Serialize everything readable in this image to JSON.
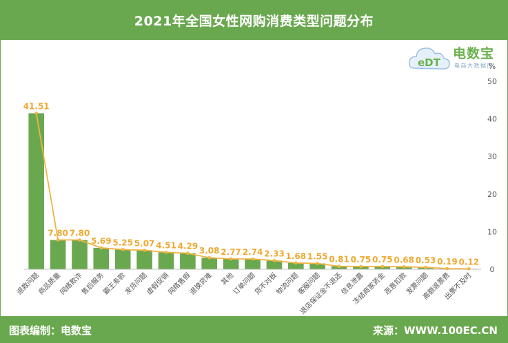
{
  "header": {
    "title": "2021年全国女性网购消费类型问题分布"
  },
  "footer": {
    "left": "图表编制：电数宝",
    "right": "来源：WWW.100EC.CN"
  },
  "logo": {
    "mark": "eDT",
    "brand": "电数宝",
    "tagline": "电商大数据库"
  },
  "chart_data": {
    "type": "bar",
    "title": "2021年全国女性网购消费类型问题分布",
    "ylabel": "%",
    "ylim": [
      0,
      50
    ],
    "yticks": [
      0,
      10,
      20,
      30,
      40,
      50
    ],
    "y_axis_side": "right",
    "grid": false,
    "categories": [
      "退款问题",
      "商品质量",
      "网络欺诈",
      "售后服务",
      "霸王条款",
      "发货问题",
      "虚假促销",
      "网络售假",
      "退换货难",
      "其他",
      "订单问题",
      "货不对板",
      "物流问题",
      "客服问题",
      "退店保证金不退还",
      "信息泄露",
      "冻结商家资金",
      "恶意扣款",
      "发票问题",
      "高额退票费",
      "出票不及时"
    ],
    "series": [
      {
        "type": "bar",
        "color": "#6aa84f",
        "values": [
          41.51,
          7.8,
          7.8,
          5.69,
          5.25,
          5.07,
          4.51,
          4.29,
          3.08,
          2.77,
          2.74,
          2.33,
          1.68,
          1.55,
          0.81,
          0.75,
          0.75,
          0.68,
          0.53,
          0.19,
          0.12
        ]
      },
      {
        "type": "line",
        "color": "#f0b443",
        "values": [
          41.51,
          7.8,
          7.8,
          5.69,
          5.25,
          5.07,
          4.51,
          4.29,
          3.08,
          2.77,
          2.74,
          2.33,
          1.68,
          1.55,
          0.81,
          0.75,
          0.75,
          0.68,
          0.53,
          0.19,
          0.12
        ]
      }
    ],
    "data_labels": [
      "41.51",
      "7.80",
      "7.80",
      "5.69",
      "5.25",
      "5.07",
      "4.51",
      "4.29",
      "3.08",
      "2.77",
      "2.74",
      "2.33",
      "1.68",
      "1.55",
      "0.81",
      "0.75",
      "0.75",
      "0.68",
      "0.53",
      "0.19",
      "0.12"
    ]
  }
}
